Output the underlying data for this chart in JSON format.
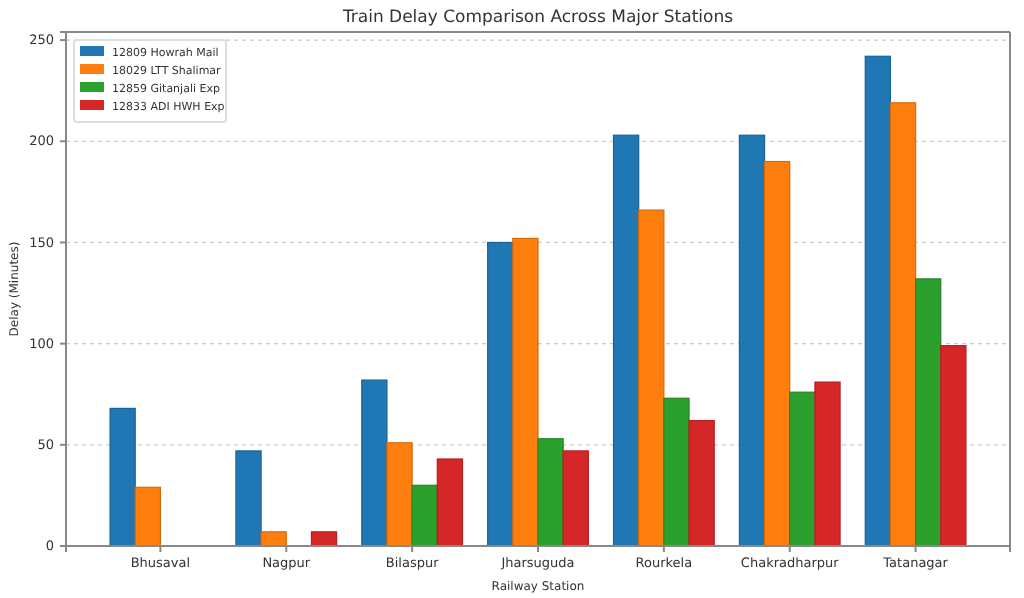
{
  "chart_data": {
    "type": "bar",
    "title": "Train Delay Comparison Across Major Stations",
    "xlabel": "Railway Station",
    "ylabel": "Delay (Minutes)",
    "categories": [
      "Bhusaval",
      "Nagpur",
      "Bilaspur",
      "Jharsuguda",
      "Rourkela",
      "Chakradharpur",
      "Tatanagar"
    ],
    "series": [
      {
        "name": "12809 Howrah Mail",
        "color": "#1f77b4",
        "values": [
          68,
          47,
          82,
          150,
          203,
          203,
          242
        ]
      },
      {
        "name": "18029 LTT Shalimar",
        "color": "#ff7f0e",
        "values": [
          29,
          7,
          51,
          152,
          166,
          190,
          219
        ]
      },
      {
        "name": "12859 Gitanjali Exp",
        "color": "#2ca02c",
        "values": [
          null,
          null,
          30,
          53,
          73,
          76,
          132
        ]
      },
      {
        "name": "12833 ADI HWH Exp",
        "color": "#d62728",
        "values": [
          null,
          7,
          43,
          47,
          62,
          81,
          99
        ]
      }
    ],
    "ylim": [
      0,
      254
    ],
    "yticks": [
      0,
      50,
      100,
      150,
      200,
      250
    ],
    "grid": "y",
    "legend": "top left"
  }
}
